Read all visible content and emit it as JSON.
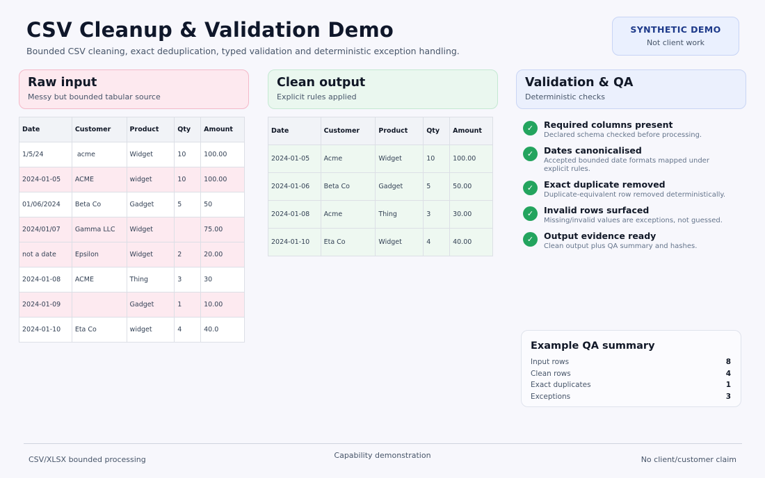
{
  "header": {
    "title": "CSV Cleanup & Validation Demo",
    "subtitle": "Bounded CSV cleaning, exact deduplication, typed validation and deterministic exception handling."
  },
  "badge": {
    "title": "SYNTHETIC DEMO",
    "subtitle": "Not client work"
  },
  "raw": {
    "title": "Raw input",
    "subtitle": "Messy but bounded tabular source",
    "columns": [
      "Date",
      "Customer",
      "Product",
      "Qty",
      "Amount"
    ],
    "rows": [
      [
        "1/5/24",
        " acme",
        "Widget",
        "10",
        "100.00"
      ],
      [
        "2024-01-05",
        "ACME",
        "widget",
        "10",
        "100.00"
      ],
      [
        "01/06/2024",
        "Beta Co",
        "Gadget",
        "5",
        "50"
      ],
      [
        "2024/01/07",
        "Gamma LLC",
        "Widget",
        "",
        "75.00"
      ],
      [
        "not a date",
        "Epsilon",
        "Widget",
        "2",
        "20.00"
      ],
      [
        "2024-01-08",
        "ACME",
        "Thing",
        "3",
        "30"
      ],
      [
        "2024-01-09",
        "",
        "Gadget",
        "1",
        "10.00"
      ],
      [
        "2024-01-10",
        "Eta Co",
        "widget",
        "4",
        "40.0"
      ]
    ]
  },
  "clean": {
    "title": "Clean output",
    "subtitle": "Explicit rules applied",
    "columns": [
      "Date",
      "Customer",
      "Product",
      "Qty",
      "Amount"
    ],
    "rows": [
      [
        "2024-01-05",
        "Acme",
        "Widget",
        "10",
        "100.00"
      ],
      [
        "2024-01-06",
        "Beta Co",
        "Gadget",
        "5",
        "50.00"
      ],
      [
        "2024-01-08",
        "Acme",
        "Thing",
        "3",
        "30.00"
      ],
      [
        "2024-01-10",
        "Eta Co",
        "Widget",
        "4",
        "40.00"
      ]
    ]
  },
  "qa": {
    "title": "Validation & QA",
    "subtitle": "Deterministic checks",
    "check_icon": "check-icon",
    "checks": [
      {
        "title": "Required columns present",
        "desc": "Declared schema checked before processing."
      },
      {
        "title": "Dates canonicalised",
        "desc": "Accepted bounded date formats mapped under explicit rules."
      },
      {
        "title": "Exact duplicate removed",
        "desc": "Duplicate-equivalent row removed deterministically."
      },
      {
        "title": "Invalid rows surfaced",
        "desc": "Missing/invalid values are exceptions, not guessed."
      },
      {
        "title": "Output evidence ready",
        "desc": "Clean output plus QA summary and hashes."
      }
    ]
  },
  "summary": {
    "title": "Example QA summary",
    "rows": [
      {
        "label": "Input rows",
        "value": "8"
      },
      {
        "label": "Clean rows",
        "value": "4"
      },
      {
        "label": "Exact duplicates",
        "value": "1"
      },
      {
        "label": "Exceptions",
        "value": "3"
      }
    ]
  },
  "footer": {
    "left": "CSV/XLSX bounded processing",
    "center": "Capability demonstration",
    "right": "No client/customer claim"
  },
  "colors": {
    "raw_highlight": "#fdeaf0",
    "clean_fill": "#eef8f1",
    "check_green": "#23a45e",
    "badge_text": "#1e3a8a"
  }
}
